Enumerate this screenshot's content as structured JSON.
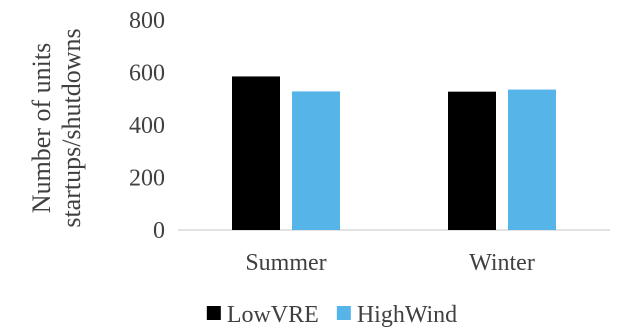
{
  "chart_data": {
    "type": "bar",
    "title": "",
    "xlabel": "",
    "ylabel_lines": [
      "Number of units",
      "startups/shutdowns"
    ],
    "categories": [
      "Summer",
      "Winter"
    ],
    "series": [
      {
        "name": "LowVRE",
        "values": [
          585,
          527
        ],
        "color": "#000000"
      },
      {
        "name": "HighWind",
        "values": [
          528,
          535
        ],
        "color": "#56b4e9"
      }
    ],
    "ylim": [
      0,
      800
    ],
    "yticks": [
      0,
      200,
      400,
      600,
      800
    ],
    "grid": false,
    "legend_position": "bottom"
  }
}
